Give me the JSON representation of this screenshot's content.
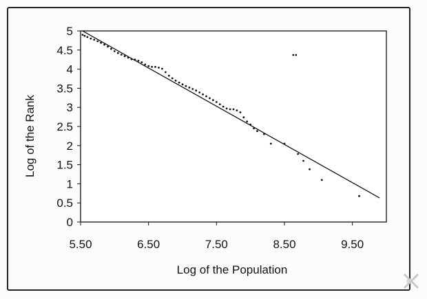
{
  "chart_data": {
    "type": "scatter",
    "title": "",
    "xlabel": "Log of the Population",
    "ylabel": "Log of the Rank",
    "xlim": [
      5.5,
      10.0
    ],
    "ylim": [
      0,
      5
    ],
    "x_ticks": [
      "5.50",
      "6.50",
      "7.50",
      "8.50",
      "9.50"
    ],
    "x_tick_values": [
      5.5,
      6.5,
      7.5,
      8.5,
      9.5
    ],
    "y_ticks": [
      "0",
      "0.5",
      "1",
      "1.5",
      "2",
      "2.5",
      "3",
      "3.5",
      "4",
      "4.5",
      "5"
    ],
    "y_tick_values": [
      0,
      0.5,
      1,
      1.5,
      2,
      2.5,
      3,
      3.5,
      4,
      4.5,
      5
    ],
    "grid": false,
    "legend": "none",
    "series": [
      {
        "type": "scatter",
        "x": [
          5.53,
          5.56,
          5.6,
          5.65,
          5.7,
          5.75,
          5.8,
          5.85,
          5.9,
          5.95,
          6.0,
          6.05,
          6.1,
          6.15,
          6.2,
          6.25,
          6.3,
          6.35,
          6.4,
          6.45,
          6.5,
          6.55,
          6.6,
          6.65,
          6.7,
          6.75,
          6.8,
          6.85,
          6.9,
          6.95,
          7.0,
          7.05,
          7.1,
          7.15,
          7.2,
          7.25,
          7.3,
          7.35,
          7.4,
          7.45,
          7.5,
          7.55,
          7.6,
          7.65,
          7.7,
          7.75,
          7.8,
          7.85,
          7.9,
          7.95,
          8.0,
          8.05,
          8.1,
          8.2,
          8.3,
          8.5,
          8.63,
          8.67,
          8.7,
          8.78,
          8.87,
          9.05,
          9.6
        ],
        "y": [
          4.9,
          4.87,
          4.84,
          4.8,
          4.77,
          4.73,
          4.69,
          4.64,
          4.59,
          4.53,
          4.47,
          4.42,
          4.38,
          4.34,
          4.3,
          4.26,
          4.25,
          4.22,
          4.18,
          4.12,
          4.08,
          4.06,
          4.06,
          4.04,
          4.01,
          3.92,
          3.83,
          3.76,
          3.7,
          3.65,
          3.6,
          3.56,
          3.52,
          3.48,
          3.44,
          3.39,
          3.34,
          3.29,
          3.24,
          3.19,
          3.14,
          3.08,
          3.02,
          2.97,
          2.95,
          2.95,
          2.92,
          2.87,
          2.74,
          2.63,
          2.55,
          2.45,
          2.38,
          2.3,
          2.05,
          2.05,
          4.37,
          4.37,
          1.78,
          1.6,
          1.38,
          1.1,
          0.68
        ]
      },
      {
        "type": "line",
        "x": [
          5.53,
          9.9
        ],
        "y": [
          5.0,
          0.63
        ]
      }
    ]
  },
  "colors": {
    "ink": "#111111",
    "frame": "#222222",
    "paper": "#ffffff"
  }
}
